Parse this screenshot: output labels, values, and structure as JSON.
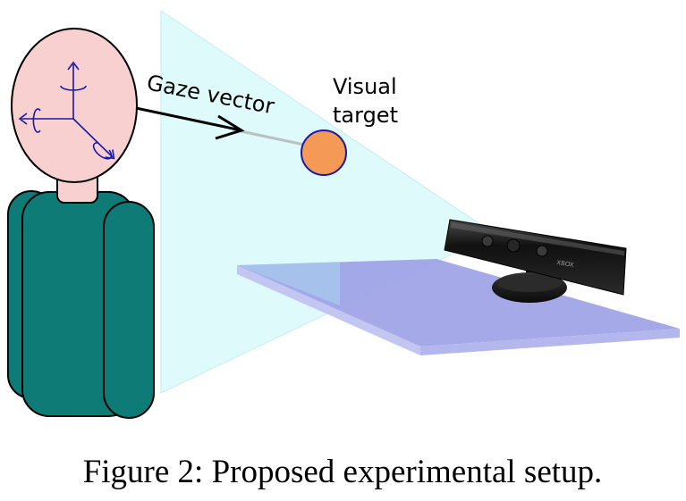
{
  "labels": {
    "gaze_vector": "Gaze vector",
    "visual_target_line1": "Visual",
    "visual_target_line2": "target",
    "sensor_brand": "XBOX"
  },
  "caption": "Figure 2: Proposed experimental setup.",
  "colors": {
    "frustum": "#dffafa",
    "head": "#f8d0d0",
    "body": "#0e7b76",
    "target": "#f59a56",
    "table": "#9c9fe6",
    "axes": "#1a1aa8",
    "sensor": "#1c1c1c"
  },
  "icons": [
    "rotation-axes-icon",
    "gaze-arrow-icon"
  ]
}
